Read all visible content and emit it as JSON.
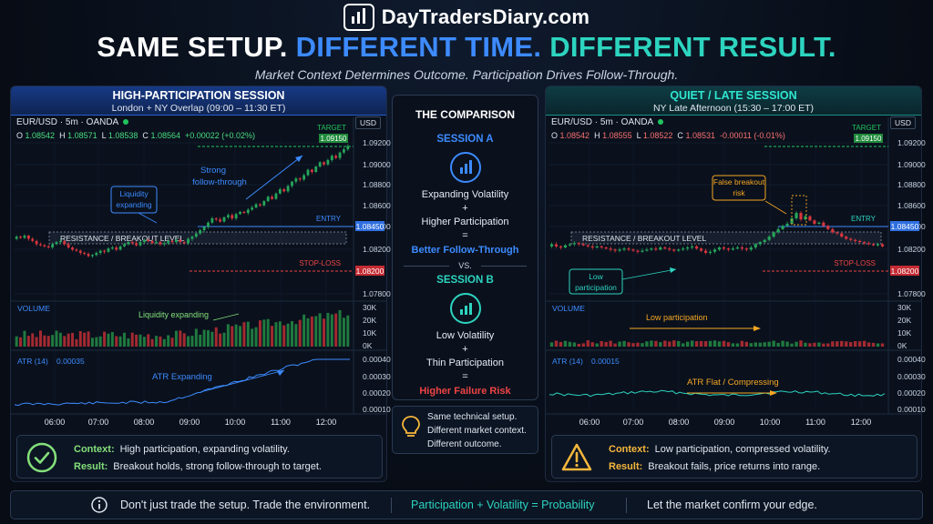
{
  "brand": {
    "name": "DayTradersDiary.com"
  },
  "headline": {
    "part1": "SAME SETUP.",
    "part2": "DIFFERENT TIME.",
    "part3": "DIFFERENT RESULT."
  },
  "subheadline": "Market Context Determines Outcome. Participation Drives Follow-Through.",
  "colors": {
    "blue": "#3d8bff",
    "teal": "#2dd4bf",
    "green_candle": "#26a65b",
    "red_candle": "#d9363e",
    "target": "#22c55e",
    "stop": "#ef4444",
    "entry": "#3d8bff",
    "annotation_blue": "#3d8bff",
    "annotation_orange": "#f6a623"
  },
  "left_panel": {
    "title": "HIGH-PARTICIPATION SESSION",
    "subtitle": "London + NY Overlap (09:00 – 11:30 ET)",
    "symbol": "EUR/USD · 5m · OANDA",
    "currency": "USD",
    "ohlc": {
      "o_label": "O",
      "o": "1.08542",
      "h_label": "H",
      "h": "1.08571",
      "l_label": "L",
      "l": "1.08538",
      "c_label": "C",
      "c": "1.08564",
      "change": "+0.00022 (+0.02%)"
    },
    "context_label": "Context:",
    "context": "High participation, expanding volatility.",
    "result_label": "Result:",
    "result": "Breakout holds, strong follow-through to target."
  },
  "right_panel": {
    "title": "QUIET / LATE SESSION",
    "subtitle": "NY Late Afternoon (15:30 – 17:00 ET)",
    "symbol": "EUR/USD · 5m · OANDA",
    "currency": "USD",
    "ohlc": {
      "o_label": "O",
      "o": "1.08542",
      "h_label": "H",
      "h": "1.08555",
      "l_label": "L",
      "l": "1.08522",
      "c_label": "C",
      "c": "1.08531",
      "change": "-0.00011 (-0.01%)"
    },
    "context_label": "Context:",
    "context": "Low participation, compressed volatility.",
    "result_label": "Result:",
    "result": "Breakout fails, price returns into range."
  },
  "comparison": {
    "title": "THE COMPARISON",
    "session_a": {
      "label": "SESSION A",
      "line1": "Expanding Volatility",
      "plus": "+",
      "line2": "Higher Participation",
      "eq": "=",
      "result": "Better Follow-Through"
    },
    "vs": "VS.",
    "session_b": {
      "label": "SESSION B",
      "line1": "Low Volatility",
      "plus": "+",
      "line2": "Thin Participation",
      "eq": "=",
      "result": "Higher Failure Risk"
    }
  },
  "tip": {
    "line1": "Same technical setup.",
    "line2": "Different market context.",
    "line3": "Different outcome."
  },
  "footer": {
    "left": "Don't just trade the setup. Trade the environment.",
    "middle": "Participation + Volatility = Probability",
    "right": "Let the market confirm your edge."
  },
  "chart_data": [
    {
      "type": "candlestick",
      "title": "HIGH-PARTICIPATION SESSION",
      "x_ticks": [
        "06:00",
        "07:00",
        "08:00",
        "09:00",
        "10:00",
        "11:00",
        "12:00"
      ],
      "y_ticks": [
        "1.09200",
        "1.09000",
        "1.08800",
        "1.08600",
        "1.08400",
        "1.08200",
        "1.07800"
      ],
      "price_close": [
        1.0833,
        1.0832,
        1.0834,
        1.0831,
        1.0829,
        1.0826,
        1.0825,
        1.0824,
        1.0823,
        1.0826,
        1.0828,
        1.0829,
        1.0826,
        1.0823,
        1.0821,
        1.082,
        1.0818,
        1.0817,
        1.0815,
        1.0816,
        1.0818,
        1.082,
        1.0819,
        1.0822,
        1.0823,
        1.0821,
        1.0824,
        1.0826,
        1.0828,
        1.0827,
        1.0825,
        1.0828,
        1.083,
        1.0829,
        1.0827,
        1.0828,
        1.0826,
        1.0827,
        1.0829,
        1.0828,
        1.083,
        1.0828,
        1.0827,
        1.0831,
        1.0833,
        1.0836,
        1.0839,
        1.0842,
        1.0846,
        1.085,
        1.0849,
        1.0847,
        1.0851,
        1.0853,
        1.085,
        1.0854,
        1.0856,
        1.0855,
        1.0858,
        1.086,
        1.0863,
        1.0862,
        1.0866,
        1.087,
        1.0868,
        1.0873,
        1.0877,
        1.0875,
        1.088,
        1.0884,
        1.0887,
        1.0886,
        1.089,
        1.0895,
        1.0893,
        1.0898,
        1.0902,
        1.09,
        1.0904,
        1.0908,
        1.0906,
        1.0911,
        1.0914,
        1.0917
      ],
      "levels": {
        "target": {
          "label": "TARGET",
          "value": "1.09150"
        },
        "entry": {
          "label": "ENTRY",
          "value": "1.08450"
        },
        "stop": {
          "label": "STOP-LOSS",
          "value": "1.08200"
        },
        "resistance": {
          "label": "RESISTANCE / BREAKOUT LEVEL"
        }
      },
      "annotations": [
        "Liquidity expanding",
        "Strong follow-through"
      ],
      "volume": {
        "label": "VOLUME",
        "annotation": "Liquidity expanding",
        "y_ticks": [
          "30K",
          "20K",
          "10K",
          "0K"
        ]
      },
      "atr": {
        "label": "ATR (14)",
        "value": "0.00035",
        "annotation": "ATR Expanding",
        "y_ticks": [
          "0.00040",
          "0.00030",
          "0.00020",
          "0.00010"
        ]
      }
    },
    {
      "type": "candlestick",
      "title": "QUIET / LATE SESSION",
      "x_ticks": [
        "06:00",
        "07:00",
        "08:00",
        "09:00",
        "10:00",
        "11:00",
        "12:00"
      ],
      "y_ticks": [
        "1.09200",
        "1.09000",
        "1.08800",
        "1.08600",
        "1.08400",
        "1.08200",
        "1.07800"
      ],
      "price_close": [
        1.0826,
        1.0824,
        1.0823,
        1.0825,
        1.0826,
        1.0827,
        1.0826,
        1.0825,
        1.0824,
        1.0823,
        1.0824,
        1.0823,
        1.0822,
        1.0821,
        1.082,
        1.0821,
        1.0822,
        1.0821,
        1.082,
        1.0819,
        1.082,
        1.0821,
        1.0822,
        1.0821,
        1.0823,
        1.0822,
        1.0821,
        1.082,
        1.0821,
        1.0822,
        1.0823,
        1.0824,
        1.0822,
        1.082,
        1.0818,
        1.0819,
        1.0821,
        1.0823,
        1.0822,
        1.0821,
        1.0822,
        1.0823,
        1.0822,
        1.0821,
        1.0823,
        1.0826,
        1.0828,
        1.083,
        1.0833,
        1.0837,
        1.084,
        1.0843,
        1.0845,
        1.085,
        1.0855,
        1.0849,
        1.0852,
        1.0848,
        1.0845,
        1.0846,
        1.0843,
        1.084,
        1.0837,
        1.0836,
        1.0833,
        1.0831,
        1.083,
        1.0829,
        1.0828,
        1.0827,
        1.0826,
        1.0825,
        1.0826,
        1.0824
      ],
      "levels": {
        "target": {
          "label": "TARGET",
          "value": "1.09150"
        },
        "entry": {
          "label": "ENTRY",
          "value": "1.08450"
        },
        "stop": {
          "label": "STOP-LOSS",
          "value": "1.08200"
        },
        "resistance": {
          "label": "RESISTANCE / BREAKOUT LEVEL"
        }
      },
      "annotations": [
        "False breakout risk",
        "Low participation"
      ],
      "volume": {
        "label": "VOLUME",
        "annotation": "Low participation",
        "y_ticks": [
          "30K",
          "20K",
          "10K",
          "0K"
        ]
      },
      "atr": {
        "label": "ATR (14)",
        "value": "0.00015",
        "annotation": "ATR Flat / Compressing",
        "y_ticks": [
          "0.00040",
          "0.00030",
          "0.00020",
          "0.00010"
        ]
      }
    }
  ]
}
